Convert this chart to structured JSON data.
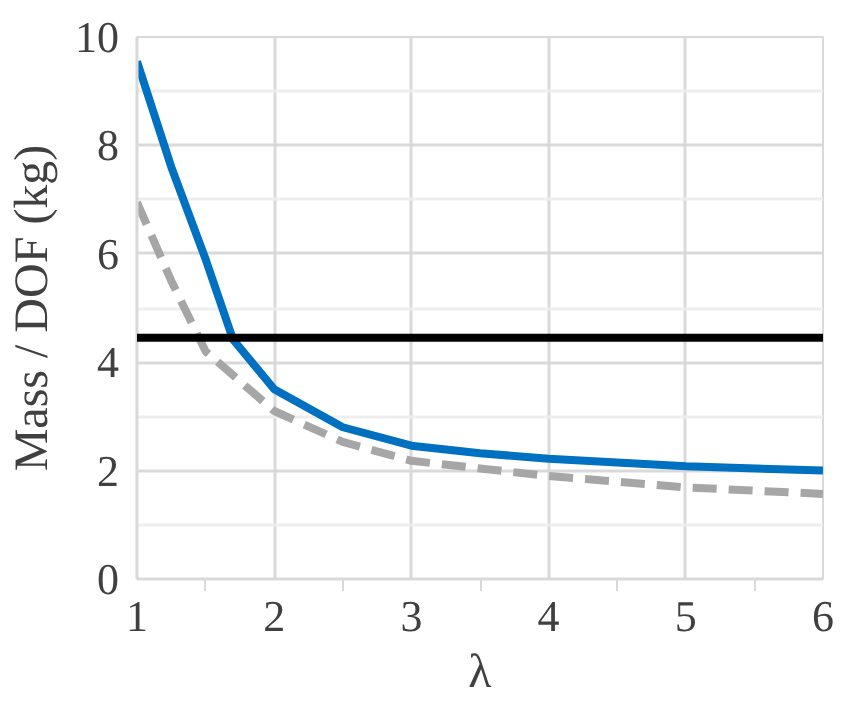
{
  "chart_data": {
    "type": "line",
    "xlabel": "λ",
    "ylabel": "Mass / DOF (kg)",
    "xlim": [
      1,
      6
    ],
    "ylim": [
      0,
      10
    ],
    "xticks": [
      1,
      2,
      3,
      4,
      5,
      6
    ],
    "yticks": [
      0,
      2,
      4,
      6,
      8,
      10
    ],
    "grid": true,
    "series": [
      {
        "color": "#0070c0",
        "line_style": "solid",
        "x": [
          1,
          1.25,
          1.5,
          1.7,
          2,
          2.5,
          3,
          3.5,
          4,
          5,
          6
        ],
        "values": [
          9.55,
          7.6,
          5.9,
          4.42,
          3.5,
          2.8,
          2.46,
          2.32,
          2.22,
          2.08,
          2.0
        ]
      },
      {
        "color": "#a6a6a6",
        "line_style": "dashed",
        "x": [
          1,
          1.25,
          1.5,
          2,
          2.5,
          3,
          4,
          5,
          6
        ],
        "values": [
          6.95,
          5.5,
          4.2,
          3.1,
          2.53,
          2.18,
          1.9,
          1.69,
          1.57
        ]
      }
    ],
    "ref_lines": [
      {
        "axis": "y",
        "value": 4.45,
        "color": "#000000"
      }
    ]
  }
}
